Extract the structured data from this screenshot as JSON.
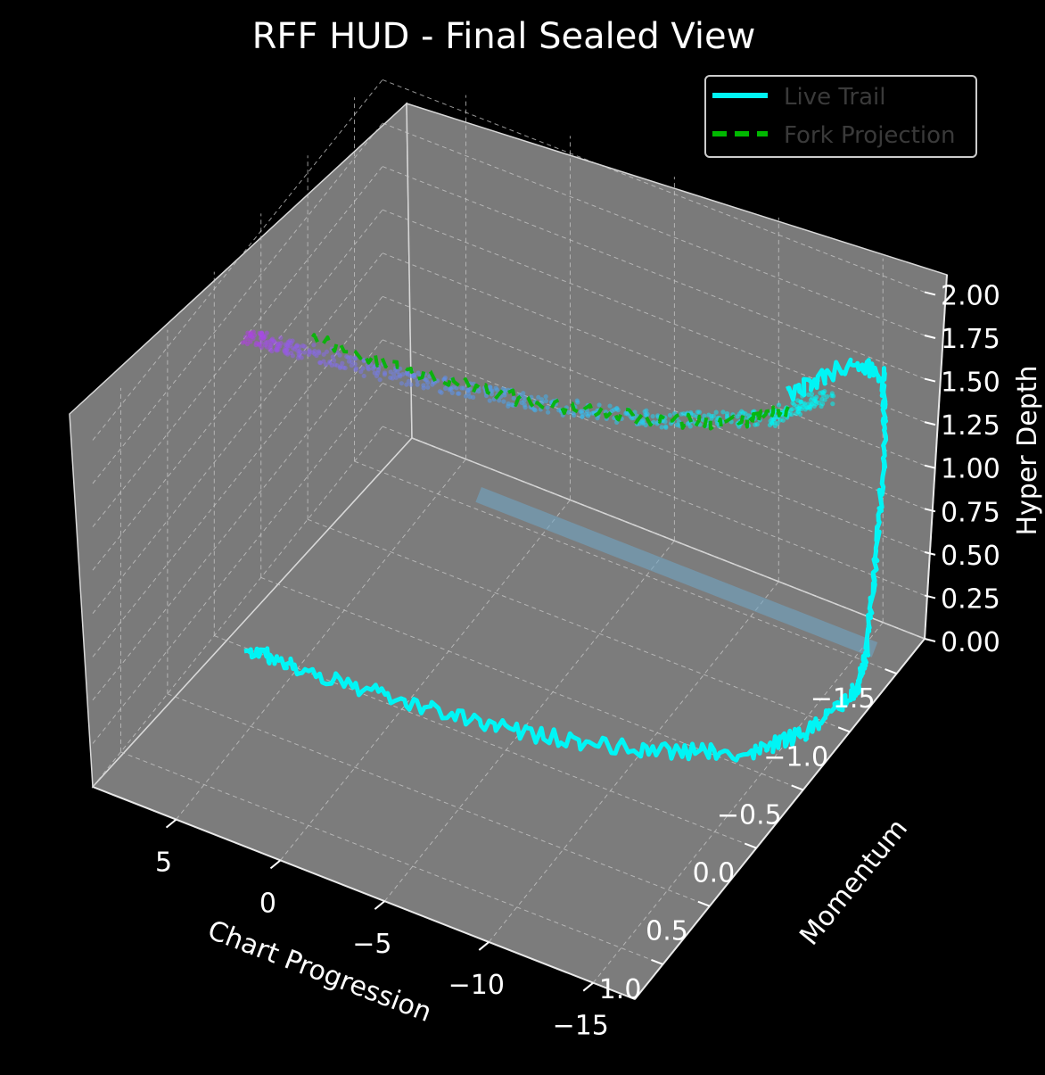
{
  "chart_data": {
    "type": "line",
    "projection": "3d",
    "title": "RFF HUD - Final Sealed View",
    "xlabel": "Chart Progression",
    "ylabel": "Momentum",
    "zlabel": "Hyper Depth",
    "xlim": [
      -17,
      9
    ],
    "ylim": [
      1.3,
      -1.8
    ],
    "zlim": [
      0,
      2.1
    ],
    "x_ticks": [
      "5",
      "0",
      "−5",
      "−10",
      "−15"
    ],
    "y_ticks": [
      "−1.5",
      "−1.0",
      "−0.5",
      "0.0",
      "0.5",
      "1.0"
    ],
    "z_ticks": [
      "0.00",
      "0.25",
      "0.50",
      "0.75",
      "1.00",
      "1.25",
      "1.50",
      "1.75",
      "2.00"
    ],
    "grid": true,
    "legend_placement": "top-right",
    "pane_color": "#7a7a7a",
    "background": "#000000",
    "series": [
      {
        "name": "Live Trail",
        "color": "#00f5f5",
        "style": "solid",
        "points": [
          {
            "x": 7.5,
            "y": 0.0,
            "z": 0.0
          },
          {
            "x": 5,
            "y": 0.0,
            "z": 0.0
          },
          {
            "x": 0,
            "y": -0.05,
            "z": 0.0
          },
          {
            "x": -5,
            "y": -0.15,
            "z": 0.0
          },
          {
            "x": -10,
            "y": -0.35,
            "z": 0.0
          },
          {
            "x": -14,
            "y": -0.6,
            "z": 0.0
          },
          {
            "x": -15.5,
            "y": -0.9,
            "z": 0.0
          },
          {
            "x": -16,
            "y": -1.3,
            "z": 0.0
          },
          {
            "x": -16,
            "y": -1.4,
            "z": 0.15
          },
          {
            "x": -16,
            "y": -1.5,
            "z": 0.6
          },
          {
            "x": -16,
            "y": -1.6,
            "z": 1.2
          },
          {
            "x": -15.9,
            "y": -1.6,
            "z": 1.6
          },
          {
            "x": -15.5,
            "y": -1.4,
            "z": 1.8
          },
          {
            "x": -14,
            "y": -1.0,
            "z": 1.8
          }
        ]
      },
      {
        "name": "Fork Projection",
        "color": "#00b800",
        "style": "dashed",
        "points": [
          {
            "x": 5,
            "y": -0.15,
            "z": 1.8
          },
          {
            "x": 0,
            "y": -0.2,
            "z": 1.8
          },
          {
            "x": -5,
            "y": -0.3,
            "z": 1.8
          },
          {
            "x": -10,
            "y": -0.5,
            "z": 1.8
          },
          {
            "x": -13,
            "y": -0.7,
            "z": 1.8
          },
          {
            "x": -14.5,
            "y": -0.9,
            "z": 1.8
          }
        ]
      },
      {
        "name": "",
        "color": "#6fa8c8",
        "style": "band",
        "points": [
          {
            "x": 3.5,
            "y": -1.6,
            "z": 0.0
          },
          {
            "x": -15.5,
            "y": -1.6,
            "z": 0.0
          }
        ]
      },
      {
        "name": "",
        "color": "#b040e0",
        "style": "scatter-gradient",
        "color_end": "#00f5f5",
        "points": [
          {
            "x": 7.5,
            "y": 0.0,
            "z": 1.8
          },
          {
            "x": 5,
            "y": -0.05,
            "z": 1.8
          },
          {
            "x": 0,
            "y": -0.15,
            "z": 1.8
          },
          {
            "x": -5,
            "y": -0.3,
            "z": 1.8
          },
          {
            "x": -10,
            "y": -0.5,
            "z": 1.8
          },
          {
            "x": -14,
            "y": -0.8,
            "z": 1.8
          },
          {
            "x": -15.5,
            "y": -1.1,
            "z": 1.8
          }
        ]
      }
    ]
  }
}
